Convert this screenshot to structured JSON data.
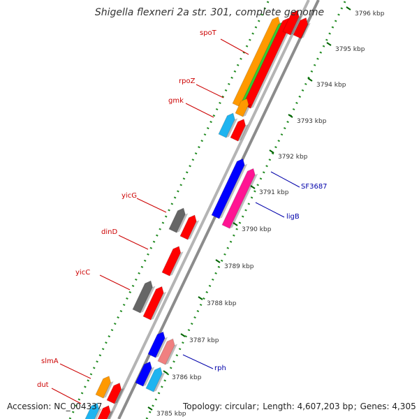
{
  "header": {
    "title": "Shigella flexneri 2a str. 301, complete genome"
  },
  "footer": {
    "accession_label": "Accession:",
    "accession_value": "NC_004337",
    "topology_label": "Topology:",
    "topology_value": "circular",
    "length_label": "Length:",
    "length_value": "4,607,203 bp",
    "genes_label": "Genes:",
    "genes_value": "4,305"
  },
  "ruler": {
    "ticks": [
      "3796 kbp",
      "3795 kbp",
      "3794 kbp",
      "3793 kbp",
      "3792 kbp",
      "3791 kbp",
      "3790 kbp",
      "3789 kbp",
      "3788 kbp",
      "3787 kbp",
      "3786 kbp",
      "3785 kbp"
    ]
  },
  "gene_labels_left": [
    "spoT",
    "rpoZ",
    "gmk",
    "yicG",
    "dinD",
    "yicC",
    "slmA",
    "dut"
  ],
  "gene_labels_right": [
    "SF3687",
    "ligB",
    "rph"
  ],
  "colors": {
    "left_label": "#cc0000",
    "right_label": "#0000aa",
    "ruler": "#228b22",
    "red_gene": "#ff0000",
    "blue_gene": "#0000ff",
    "cyan_gene": "#1eb4f0",
    "orange_gene": "#ff9900",
    "green_gene": "#33cc33",
    "magenta_gene": "#ff1493",
    "gray_gene": "#666666",
    "pink_gene": "#f08080",
    "backbone": "#9a9a9a"
  }
}
